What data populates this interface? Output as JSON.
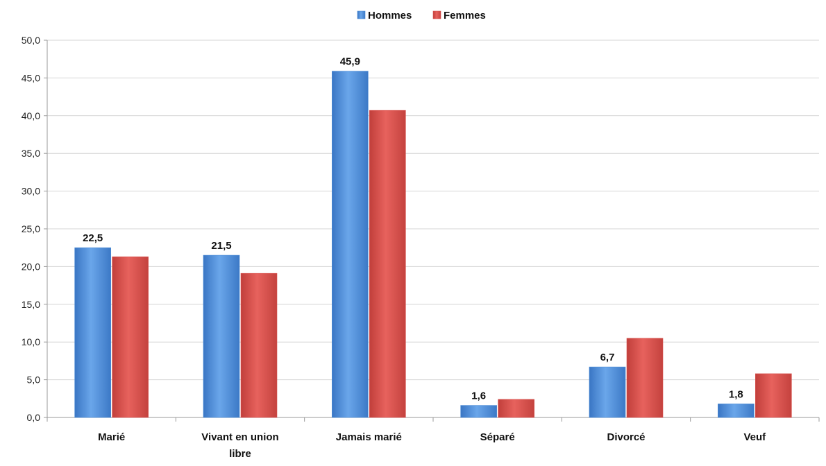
{
  "chart_data": {
    "type": "bar",
    "title": "",
    "xlabel": "",
    "ylabel": "",
    "ylim": [
      0,
      50
    ],
    "y_ticks": [
      "0,0",
      "5,0",
      "10,0",
      "15,0",
      "20,0",
      "25,0",
      "30,0",
      "35,0",
      "40,0",
      "45,0",
      "50,0"
    ],
    "y_tick_values": [
      0,
      5,
      10,
      15,
      20,
      25,
      30,
      35,
      40,
      45,
      50
    ],
    "categories": [
      "Marié",
      "Vivant en union libre",
      "Jamais marié",
      "Séparé",
      "Divorcé",
      "Veuf"
    ],
    "category_lines": [
      [
        "Marié"
      ],
      [
        "Vivant en union",
        "libre"
      ],
      [
        "Jamais marié"
      ],
      [
        "Séparé"
      ],
      [
        "Divorcé"
      ],
      [
        "Veuf"
      ]
    ],
    "series": [
      {
        "name": "Hommes",
        "color": "#4a8bd6",
        "values": [
          22.5,
          21.5,
          45.9,
          1.6,
          6.7,
          1.8
        ]
      },
      {
        "name": "Femmes",
        "color": "#d9534f",
        "values": [
          21.3,
          19.1,
          40.7,
          2.4,
          10.5,
          5.8
        ]
      }
    ],
    "data_labels": {
      "series": "Hommes",
      "text": [
        "22,5",
        "21,5",
        "45,9",
        "1,6",
        "6,7",
        "1,8"
      ]
    },
    "grid": true,
    "legend": "top-center"
  }
}
